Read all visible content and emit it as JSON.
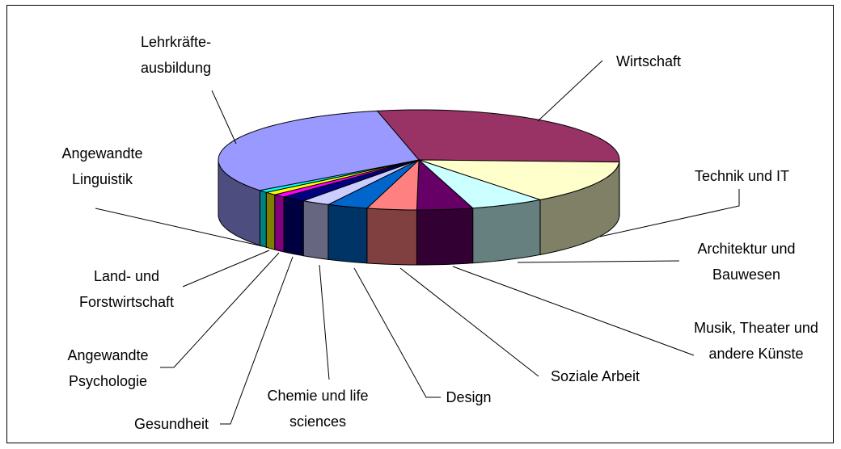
{
  "chart_data": {
    "type": "pie3d",
    "categories": [
      "Wirtschaft",
      "Technik und IT",
      "Architektur und Bauwesen",
      "Musik, Theater und andere Künste",
      "Soziale Arbeit",
      "Design",
      "Chemie und life sciences",
      "Gesundheit",
      "Angewandte Psychologie",
      "Land- und Forstwirtschaft",
      "Angewandte Linguistik",
      "Lehrkräfte-ausbildung"
    ],
    "values": [
      29,
      14,
      6,
      4.5,
      4,
      3.3,
      2.3,
      2,
      1,
      1,
      0.8,
      32.1
    ],
    "colors": [
      "#993366",
      "#ffffcc",
      "#ccffff",
      "#660066",
      "#ff8080",
      "#0066cc",
      "#ccccff",
      "#000080",
      "#ff00ff",
      "#ffff00",
      "#00ffff",
      "#9999ff"
    ]
  }
}
